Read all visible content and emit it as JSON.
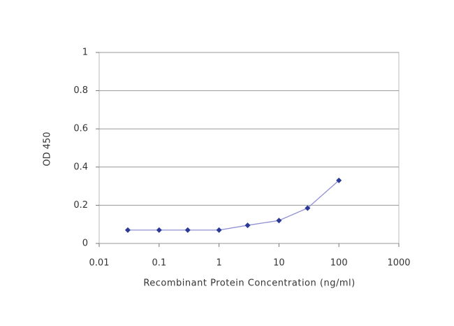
{
  "chart_data": {
    "type": "line",
    "xlabel": "Recombinant Protein Concentration (ng/ml)",
    "ylabel": "OD 450",
    "x": [
      0.03,
      0.1,
      0.3,
      1,
      3,
      10,
      30,
      100
    ],
    "values": [
      0.07,
      0.07,
      0.07,
      0.07,
      0.095,
      0.12,
      0.185,
      0.33
    ],
    "color": "#2a3896",
    "line_color": "#8f8fd6",
    "xscale": "log",
    "xlim": [
      0.01,
      1000
    ],
    "xticks": [
      0.01,
      0.1,
      1,
      10,
      100,
      1000
    ],
    "ylim": [
      0,
      1
    ],
    "yticks": [
      0,
      0.2,
      0.4,
      0.6,
      0.8,
      1
    ],
    "grid": true
  }
}
